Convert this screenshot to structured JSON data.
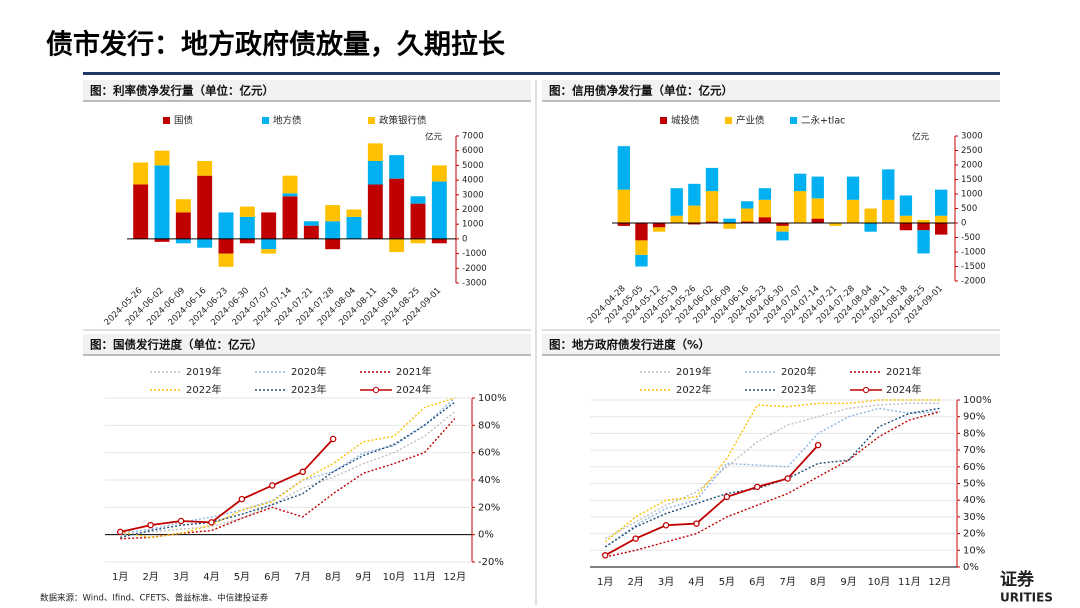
{
  "title": "债市发行：地方政府债放量，久期拉长",
  "source": "数据来源：Wind、Ifind、CFETS、普益标准、中信建投证券",
  "logo": [
    "证券",
    "URITIES"
  ],
  "chart_data": [
    {
      "type": "bar",
      "title": "图：利率债净发行量（单位：亿元）",
      "y_label": "亿元",
      "stacked": true,
      "grid": false,
      "categories": [
        "2024-05-26",
        "2024-06-02",
        "2024-06-09",
        "2024-06-16",
        "2024-06-23",
        "2024-06-30",
        "2024-07-07",
        "2024-07-14",
        "2024-07-21",
        "2024-07-28",
        "2024-08-04",
        "2024-08-11",
        "2024-08-18",
        "2024-08-25",
        "2024-09-01"
      ],
      "series": [
        {
          "name": "国债",
          "color": "#c00000",
          "values": [
            3700,
            -200,
            1800,
            4300,
            -1000,
            -300,
            1800,
            2900,
            900,
            -700,
            0,
            3700,
            4100,
            2400,
            -300
          ]
        },
        {
          "name": "地方债",
          "color": "#00b0f0",
          "values": [
            0,
            5000,
            -300,
            -600,
            1800,
            1500,
            -700,
            200,
            300,
            1200,
            1500,
            1600,
            1600,
            500,
            3900
          ]
        },
        {
          "name": "政策银行债",
          "color": "#ffc000",
          "values": [
            1500,
            1000,
            900,
            1000,
            -900,
            700,
            -300,
            1200,
            0,
            1100,
            500,
            1200,
            -900,
            -300,
            1100
          ]
        }
      ],
      "ylim": [
        -3000,
        7000
      ],
      "yticks": [
        -3000,
        -2000,
        -1000,
        0,
        1000,
        2000,
        3000,
        4000,
        5000,
        6000,
        7000
      ]
    },
    {
      "type": "bar",
      "title": "图：信用债净发行量（单位：亿元）",
      "y_label": "亿元",
      "stacked": true,
      "grid": false,
      "categories": [
        "2024-04-28",
        "2024-05-05",
        "2024-05-12",
        "2024-05-19",
        "2024-05-26",
        "2024-06-02",
        "2024-06-09",
        "2024-06-16",
        "2024-06-23",
        "2024-06-30",
        "2024-07-07",
        "2024-07-14",
        "2024-07-21",
        "2024-07-28",
        "2024-08-04",
        "2024-08-11",
        "2024-08-18",
        "2024-08-25",
        "2024-09-01"
      ],
      "series": [
        {
          "name": "城投债",
          "color": "#c00000",
          "values": [
            -100,
            -600,
            -150,
            0,
            -50,
            50,
            0,
            50,
            200,
            -100,
            0,
            150,
            0,
            0,
            0,
            0,
            -250,
            -250,
            -400
          ]
        },
        {
          "name": "产业债",
          "color": "#ffc000",
          "values": [
            1150,
            -500,
            -150,
            250,
            600,
            1050,
            -200,
            450,
            600,
            -200,
            1100,
            700,
            -100,
            800,
            500,
            800,
            250,
            100,
            250
          ]
        },
        {
          "name": "二永+tlac",
          "color": "#00b0f0",
          "values": [
            1500,
            -400,
            0,
            950,
            750,
            800,
            150,
            250,
            400,
            -300,
            600,
            750,
            0,
            800,
            -300,
            1050,
            700,
            -800,
            900
          ]
        }
      ],
      "ylim": [
        -2000,
        3000
      ],
      "yticks": [
        -2000,
        -1500,
        -1000,
        -500,
        0,
        500,
        1000,
        1500,
        2000,
        2500,
        3000
      ]
    },
    {
      "type": "line",
      "title": "图：国债发行进度（单位：亿元）",
      "grid": true,
      "categories": [
        "1月",
        "2月",
        "3月",
        "4月",
        "5月",
        "6月",
        "7月",
        "8月",
        "9月",
        "10月",
        "11月",
        "12月"
      ],
      "series": [
        {
          "name": "2019年",
          "color": "#bfbfbf",
          "style": "dotted",
          "values": [
            0,
            2,
            4,
            6,
            12,
            22,
            34,
            42,
            52,
            60,
            72,
            90
          ]
        },
        {
          "name": "2020年",
          "color": "#8db4e2",
          "style": "dotted",
          "values": [
            1,
            4,
            9,
            13,
            18,
            25,
            40,
            46,
            60,
            65,
            80,
            100
          ]
        },
        {
          "name": "2021年",
          "color": "#c00000",
          "style": "dotted",
          "values": [
            -3,
            -2,
            1,
            3,
            12,
            20,
            13,
            30,
            45,
            52,
            60,
            85
          ]
        },
        {
          "name": "2022年",
          "color": "#ffc000",
          "style": "dotted",
          "values": [
            2,
            -2,
            1,
            7,
            18,
            24,
            40,
            52,
            68,
            72,
            93,
            100
          ]
        },
        {
          "name": "2023年",
          "color": "#1f4e79",
          "style": "dotted",
          "values": [
            -2,
            3,
            7,
            9,
            15,
            22,
            30,
            46,
            58,
            66,
            80,
            97
          ]
        },
        {
          "name": "2024年",
          "color": "#c00000",
          "style": "solid",
          "marker": true,
          "values": [
            2,
            7,
            10,
            9,
            26,
            36,
            46,
            70,
            null,
            null,
            null,
            null
          ]
        }
      ],
      "ylim": [
        -20,
        100
      ],
      "yticks": [
        {
          "value": -20,
          "label": "-20%"
        },
        {
          "value": 0,
          "label": "0%"
        },
        {
          "value": 20,
          "label": "20%"
        },
        {
          "value": 40,
          "label": "40%"
        },
        {
          "value": 60,
          "label": "60%"
        },
        {
          "value": 80,
          "label": "80%"
        },
        {
          "value": 100,
          "label": "100%"
        }
      ]
    },
    {
      "type": "line",
      "title": "图：地方政府债发行进度（%）",
      "grid": true,
      "categories": [
        "1月",
        "2月",
        "3月",
        "4月",
        "5月",
        "6月",
        "7月",
        "8月",
        "9月",
        "10月",
        "11月",
        "12月"
      ],
      "series": [
        {
          "name": "2019年",
          "color": "#bfbfbf",
          "style": "dotted",
          "values": [
            17,
            27,
            37,
            45,
            60,
            75,
            85,
            90,
            95,
            97,
            98,
            98
          ]
        },
        {
          "name": "2020年",
          "color": "#8db4e2",
          "style": "dotted",
          "values": [
            12,
            25,
            35,
            40,
            62,
            61,
            60,
            80,
            90,
            95,
            92,
            93
          ]
        },
        {
          "name": "2021年",
          "color": "#c00000",
          "style": "dotted",
          "values": [
            6,
            10,
            15,
            20,
            30,
            37,
            44,
            54,
            64,
            78,
            88,
            93
          ]
        },
        {
          "name": "2022年",
          "color": "#ffc000",
          "style": "dotted",
          "values": [
            15,
            30,
            40,
            42,
            65,
            97,
            96,
            98,
            98,
            100,
            100,
            100
          ]
        },
        {
          "name": "2023年",
          "color": "#1f4e79",
          "style": "dotted",
          "values": [
            12,
            24,
            32,
            38,
            44,
            47,
            53,
            62,
            64,
            84,
            92,
            95
          ]
        },
        {
          "name": "2024年",
          "color": "#c00000",
          "style": "solid",
          "marker": true,
          "values": [
            7,
            17,
            25,
            26,
            42,
            48,
            53,
            73,
            null,
            null,
            null,
            null
          ]
        }
      ],
      "ylim": [
        0,
        100
      ],
      "yticks": [
        {
          "value": 0,
          "label": "0%"
        },
        {
          "value": 10,
          "label": "10%"
        },
        {
          "value": 20,
          "label": "20%"
        },
        {
          "value": 30,
          "label": "30%"
        },
        {
          "value": 40,
          "label": "40%"
        },
        {
          "value": 50,
          "label": "50%"
        },
        {
          "value": 60,
          "label": "60%"
        },
        {
          "value": 70,
          "label": "70%"
        },
        {
          "value": 80,
          "label": "80%"
        },
        {
          "value": 90,
          "label": "90%"
        },
        {
          "value": 100,
          "label": "100%"
        }
      ]
    }
  ]
}
